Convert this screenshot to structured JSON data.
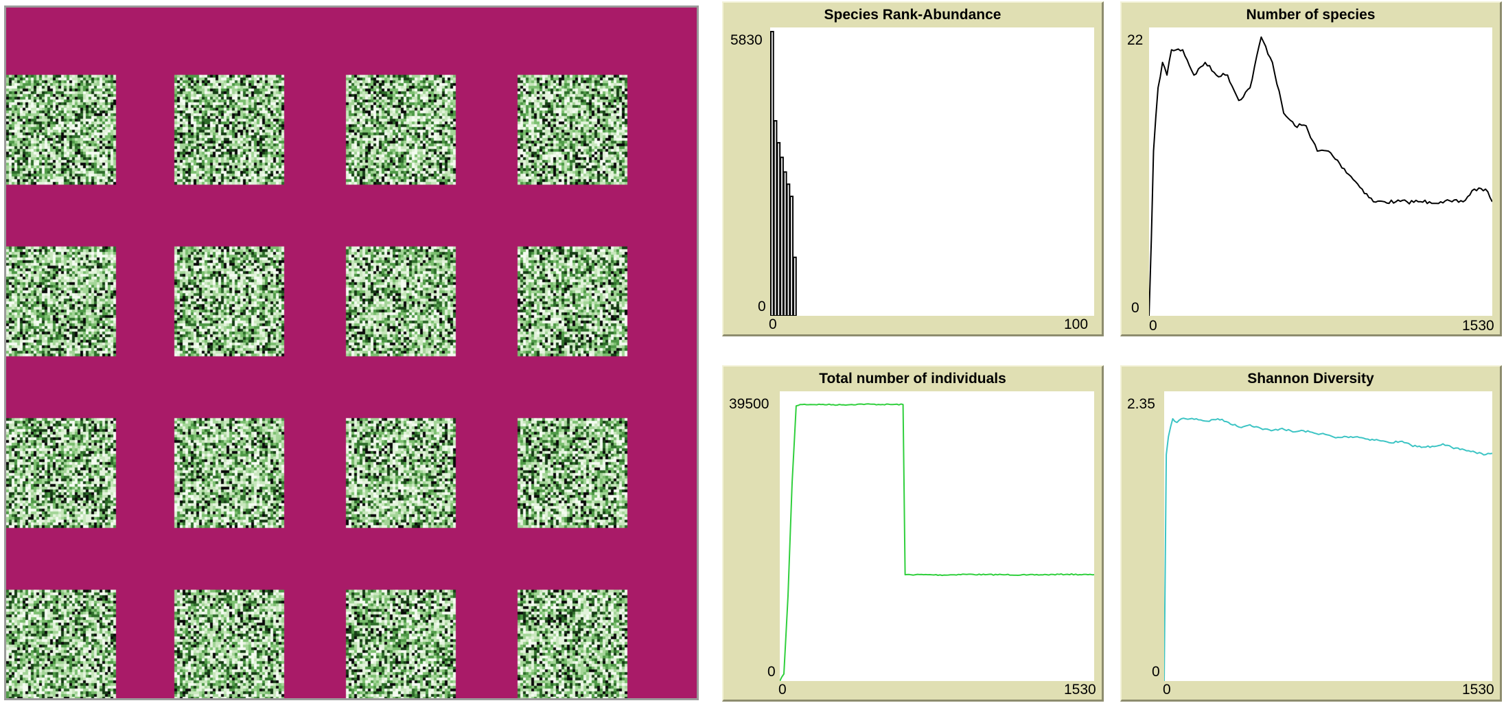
{
  "world": {
    "background_color": "#a91b68",
    "patch_grid": {
      "rows": 4,
      "cols": 4
    },
    "patch_palette": [
      "#f4fbf1",
      "#e3f3dc",
      "#c8e7bd",
      "#a3d597",
      "#7cbf70",
      "#4f9a47",
      "#2e6d2a",
      "#173d16",
      "#0a0a0a"
    ]
  },
  "plots": {
    "rank_abundance": {
      "title": "Species Rank-Abundance",
      "ymax_label": "5830",
      "ymin_label": "0",
      "xmin_label": "0",
      "xmax_label": "100",
      "pen_color": "#000000"
    },
    "species_count": {
      "title": "Number of species",
      "ymax_label": "22",
      "ymin_label": "0",
      "xmin_label": "0",
      "xmax_label": "1530",
      "pen_color": "#000000"
    },
    "individuals": {
      "title": "Total number of individuals",
      "ymax_label": "39500",
      "ymin_label": "0",
      "xmin_label": "0",
      "xmax_label": "1530",
      "pen_color": "#2fcf3c"
    },
    "shannon": {
      "title": "Shannon Diversity",
      "ymax_label": "2.35",
      "ymin_label": "0",
      "xmin_label": "0",
      "xmax_label": "1530",
      "pen_color": "#3cc4c4"
    }
  },
  "chart_data": [
    {
      "type": "bar",
      "title": "Species Rank-Abundance",
      "xlim": [
        0,
        100
      ],
      "ylim": [
        0,
        5830
      ],
      "x": [
        0,
        1,
        2,
        3,
        4,
        5,
        6,
        7
      ],
      "values": [
        5830,
        4000,
        3550,
        3250,
        2950,
        2700,
        2450,
        1200
      ]
    },
    {
      "type": "line",
      "title": "Number of species",
      "xlim": [
        0,
        1530
      ],
      "ylim": [
        0,
        22
      ],
      "x": [
        0,
        10,
        20,
        40,
        60,
        80,
        100,
        150,
        200,
        250,
        300,
        350,
        400,
        450,
        500,
        550,
        600,
        650,
        700,
        750,
        800,
        850,
        900,
        950,
        1000,
        1050,
        1100,
        1150,
        1200,
        1250,
        1300,
        1350,
        1400,
        1450,
        1500,
        1530
      ],
      "values": [
        0,
        6,
        13,
        18,
        20,
        19,
        21,
        21,
        19,
        20,
        19,
        19,
        17,
        18,
        22,
        20,
        16,
        15,
        15,
        13,
        13,
        12,
        11,
        10,
        9,
        9,
        9,
        9,
        9,
        9,
        9,
        9,
        9,
        10,
        10,
        9
      ]
    },
    {
      "type": "line",
      "title": "Total number of individuals",
      "xlim": [
        0,
        1530
      ],
      "ylim": [
        0,
        39500
      ],
      "x": [
        0,
        20,
        40,
        60,
        80,
        100,
        200,
        300,
        400,
        500,
        600,
        610,
        700,
        800,
        900,
        1000,
        1100,
        1200,
        1300,
        1400,
        1500,
        1530
      ],
      "values": [
        0,
        1000,
        12000,
        28000,
        38800,
        39000,
        39000,
        38950,
        39050,
        39000,
        39000,
        15000,
        15000,
        14950,
        15050,
        15000,
        15000,
        14950,
        15000,
        15050,
        15000,
        15000
      ]
    },
    {
      "type": "line",
      "title": "Shannon Diversity",
      "xlim": [
        0,
        1530
      ],
      "ylim": [
        0,
        2.35
      ],
      "x": [
        0,
        10,
        20,
        40,
        60,
        80,
        100,
        150,
        200,
        250,
        300,
        350,
        400,
        450,
        500,
        550,
        600,
        650,
        700,
        750,
        800,
        850,
        900,
        950,
        1000,
        1050,
        1100,
        1150,
        1200,
        1250,
        1300,
        1350,
        1400,
        1450,
        1500,
        1530
      ],
      "values": [
        0,
        1.9,
        2.05,
        2.2,
        2.17,
        2.2,
        2.2,
        2.2,
        2.18,
        2.2,
        2.17,
        2.13,
        2.15,
        2.12,
        2.1,
        2.12,
        2.09,
        2.1,
        2.08,
        2.07,
        2.04,
        2.05,
        2.05,
        2.03,
        2.02,
        2.0,
        2.01,
        1.98,
        1.96,
        1.97,
        1.99,
        1.95,
        1.94,
        1.92,
        1.9,
        1.91
      ]
    }
  ]
}
